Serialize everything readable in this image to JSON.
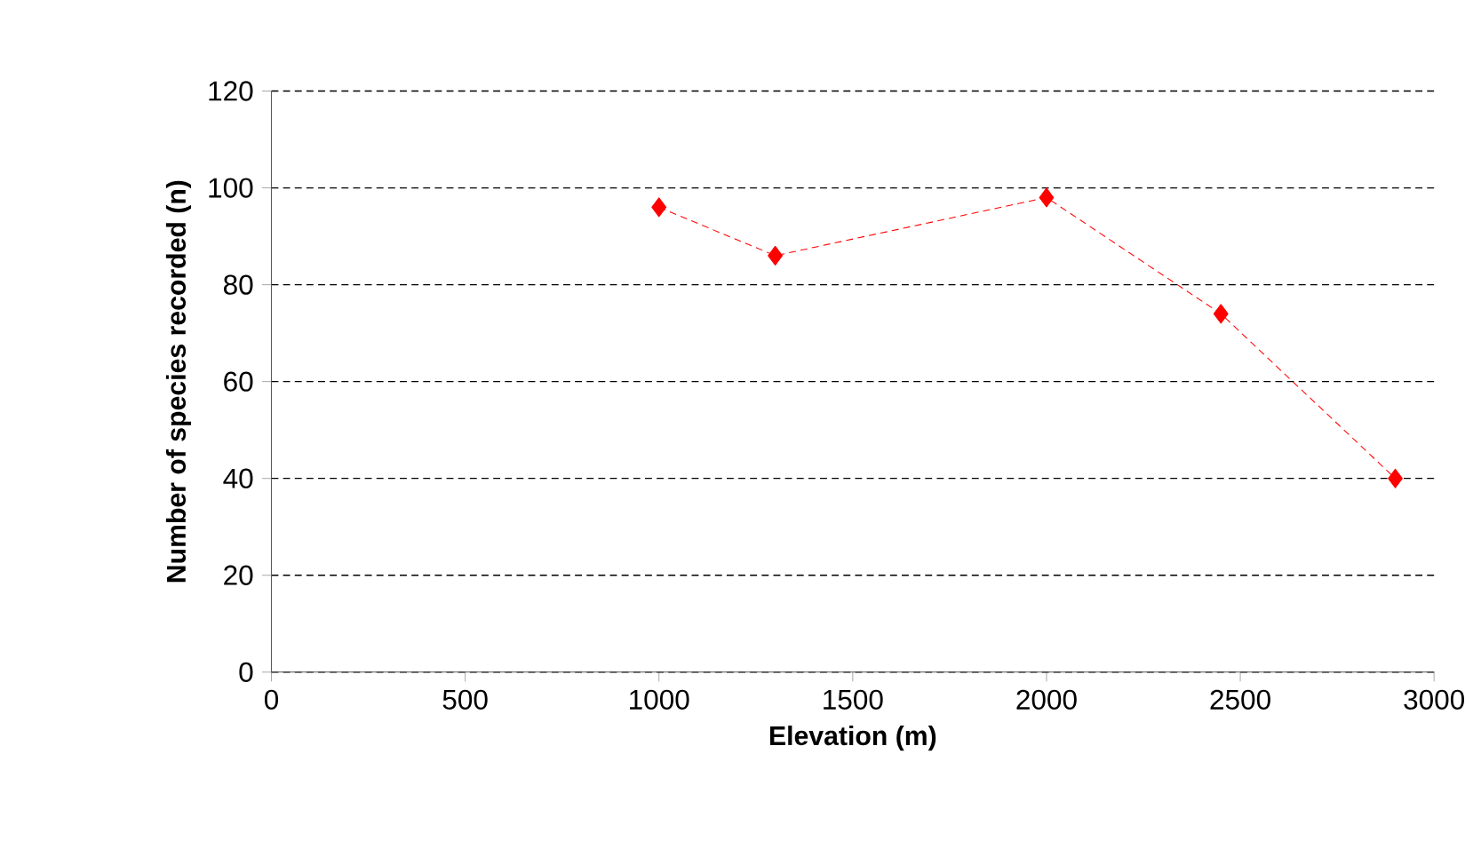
{
  "chart_data": {
    "type": "line",
    "xlabel": "Elevation (m)",
    "ylabel": "Number of species recorded (n)",
    "x": [
      1000,
      1300,
      2000,
      2450,
      2900
    ],
    "series": [
      {
        "color": "#ff0000",
        "values": [
          96,
          86,
          98,
          74,
          40
        ]
      }
    ],
    "xlim": [
      0,
      3000
    ],
    "xticks": [
      0,
      500,
      1000,
      1500,
      2000,
      2500,
      3000
    ],
    "ylim": [
      0,
      120
    ],
    "yticks": [
      0,
      20,
      40,
      60,
      80,
      100,
      120
    ],
    "grid": "y",
    "marker": "diamond",
    "line_style": "dashed"
  }
}
